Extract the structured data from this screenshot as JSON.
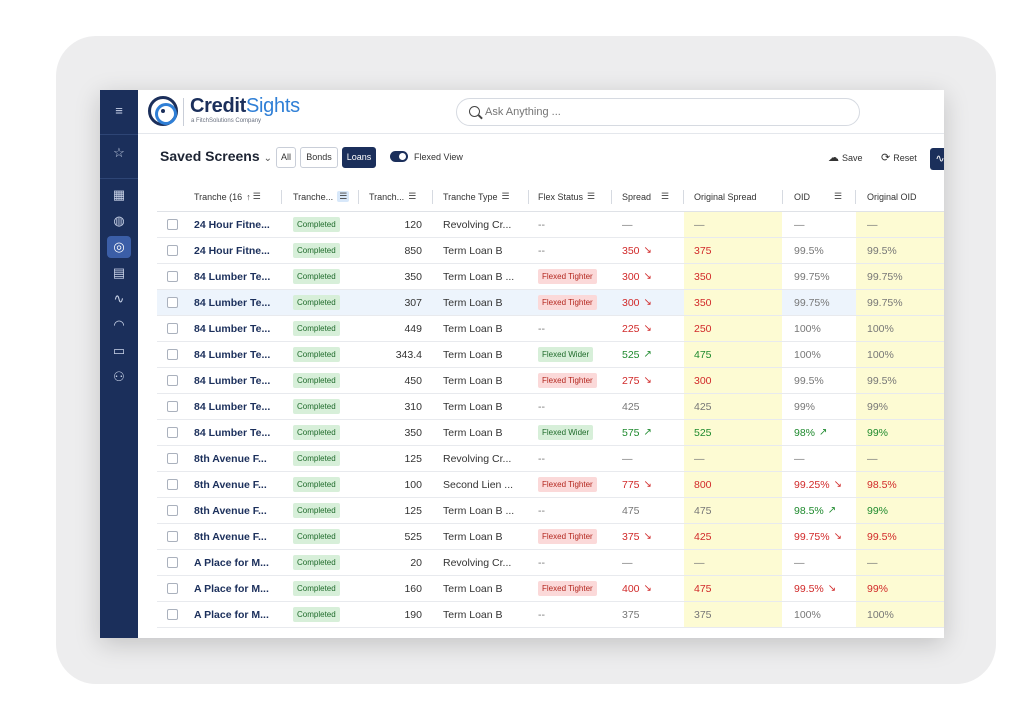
{
  "brand": {
    "name_a": "Credit",
    "name_b": "Sights",
    "tagline": "a FitchSolutions Company"
  },
  "search": {
    "placeholder": "Ask Anything ..."
  },
  "toolbar": {
    "saved_screens": "Saved Screens",
    "seg_all": "All",
    "seg_bonds": "Bonds",
    "seg_loans": "Loans",
    "flexed_view": "Flexed View",
    "save": "Save",
    "reset": "Reset"
  },
  "columns": {
    "tranche": "Tranche (16",
    "status": "Tranche...",
    "amount": "Tranch...",
    "type": "Tranche Type",
    "flex": "Flex Status",
    "spread": "Spread",
    "orig_spread": "Original Spread",
    "oid": "OID",
    "orig_oid": "Original OID"
  },
  "rows": [
    {
      "name": "24 Hour Fitne...",
      "status": "Completed",
      "amount": "120",
      "type": "Revolving Cr...",
      "flex": "--",
      "flex_kind": "none",
      "spread": "—",
      "spread_dir": "none",
      "orig_spread": "—",
      "oid": "—",
      "oid_dir": "none",
      "orig_oid": "—",
      "tone": "gray"
    },
    {
      "name": "24 Hour Fitne...",
      "status": "Completed",
      "amount": "850",
      "type": "Term Loan B",
      "flex": "--",
      "flex_kind": "none",
      "spread": "350",
      "spread_dir": "down",
      "orig_spread": "375",
      "oid": "99.5%",
      "oid_dir": "none",
      "orig_oid": "99.5%",
      "tone": "red"
    },
    {
      "name": "84 Lumber Te...",
      "status": "Completed",
      "amount": "350",
      "type": "Term Loan B ...",
      "flex": "Flexed Tighter",
      "flex_kind": "tighter",
      "spread": "300",
      "spread_dir": "down",
      "orig_spread": "350",
      "oid": "99.75%",
      "oid_dir": "none",
      "orig_oid": "99.75%",
      "tone": "red"
    },
    {
      "name": "84 Lumber Te...",
      "status": "Completed",
      "amount": "307",
      "type": "Term Loan B",
      "flex": "Flexed Tighter",
      "flex_kind": "tighter",
      "spread": "300",
      "spread_dir": "down",
      "orig_spread": "350",
      "oid": "99.75%",
      "oid_dir": "none",
      "orig_oid": "99.75%",
      "tone": "red",
      "selected": true
    },
    {
      "name": "84 Lumber Te...",
      "status": "Completed",
      "amount": "449",
      "type": "Term Loan B",
      "flex": "--",
      "flex_kind": "none",
      "spread": "225",
      "spread_dir": "down",
      "orig_spread": "250",
      "oid": "100%",
      "oid_dir": "none",
      "orig_oid": "100%",
      "tone": "red"
    },
    {
      "name": "84 Lumber Te...",
      "status": "Completed",
      "amount": "343.4",
      "type": "Term Loan B",
      "flex": "Flexed Wider",
      "flex_kind": "wider",
      "spread": "525",
      "spread_dir": "up",
      "orig_spread": "475",
      "oid": "100%",
      "oid_dir": "none",
      "orig_oid": "100%",
      "tone": "green"
    },
    {
      "name": "84 Lumber Te...",
      "status": "Completed",
      "amount": "450",
      "type": "Term Loan B",
      "flex": "Flexed Tighter",
      "flex_kind": "tighter",
      "spread": "275",
      "spread_dir": "down",
      "orig_spread": "300",
      "oid": "99.5%",
      "oid_dir": "none",
      "orig_oid": "99.5%",
      "tone": "red"
    },
    {
      "name": "84 Lumber Te...",
      "status": "Completed",
      "amount": "310",
      "type": "Term Loan B",
      "flex": "--",
      "flex_kind": "none",
      "spread": "425",
      "spread_dir": "none",
      "orig_spread": "425",
      "oid": "99%",
      "oid_dir": "none",
      "orig_oid": "99%",
      "tone": "gray"
    },
    {
      "name": "84 Lumber Te...",
      "status": "Completed",
      "amount": "350",
      "type": "Term Loan B",
      "flex": "Flexed Wider",
      "flex_kind": "wider",
      "spread": "575",
      "spread_dir": "up",
      "orig_spread": "525",
      "oid": "98%",
      "oid_dir": "up",
      "orig_oid": "99%",
      "tone": "green"
    },
    {
      "name": "8th Avenue F...",
      "status": "Completed",
      "amount": "125",
      "type": "Revolving Cr...",
      "flex": "--",
      "flex_kind": "none",
      "spread": "—",
      "spread_dir": "none",
      "orig_spread": "—",
      "oid": "—",
      "oid_dir": "none",
      "orig_oid": "—",
      "tone": "gray"
    },
    {
      "name": "8th Avenue F...",
      "status": "Completed",
      "amount": "100",
      "type": "Second Lien ...",
      "flex": "Flexed Tighter",
      "flex_kind": "tighter",
      "spread": "775",
      "spread_dir": "down",
      "orig_spread": "800",
      "oid": "99.25%",
      "oid_dir": "down",
      "orig_oid": "98.5%",
      "tone": "red"
    },
    {
      "name": "8th Avenue F...",
      "status": "Completed",
      "amount": "125",
      "type": "Term Loan B ...",
      "flex": "--",
      "flex_kind": "none",
      "spread": "475",
      "spread_dir": "none",
      "orig_spread": "475",
      "oid": "98.5%",
      "oid_dir": "up",
      "orig_oid": "99%",
      "tone": "gray",
      "oid_tone": "green"
    },
    {
      "name": "8th Avenue F...",
      "status": "Completed",
      "amount": "525",
      "type": "Term Loan B",
      "flex": "Flexed Tighter",
      "flex_kind": "tighter",
      "spread": "375",
      "spread_dir": "down",
      "orig_spread": "425",
      "oid": "99.75%",
      "oid_dir": "down",
      "orig_oid": "99.5%",
      "tone": "red"
    },
    {
      "name": "A Place for M...",
      "status": "Completed",
      "amount": "20",
      "type": "Revolving Cr...",
      "flex": "--",
      "flex_kind": "none",
      "spread": "—",
      "spread_dir": "none",
      "orig_spread": "—",
      "oid": "—",
      "oid_dir": "none",
      "orig_oid": "—",
      "tone": "gray"
    },
    {
      "name": "A Place for M...",
      "status": "Completed",
      "amount": "160",
      "type": "Term Loan B",
      "flex": "Flexed Tighter",
      "flex_kind": "tighter",
      "spread": "400",
      "spread_dir": "down",
      "orig_spread": "475",
      "oid": "99.5%",
      "oid_dir": "down",
      "orig_oid": "99%",
      "tone": "red"
    },
    {
      "name": "A Place for M...",
      "status": "Completed",
      "amount": "190",
      "type": "Term Loan B",
      "flex": "--",
      "flex_kind": "none",
      "spread": "375",
      "spread_dir": "none",
      "orig_spread": "375",
      "oid": "100%",
      "oid_dir": "none",
      "orig_oid": "100%",
      "tone": "gray"
    }
  ]
}
